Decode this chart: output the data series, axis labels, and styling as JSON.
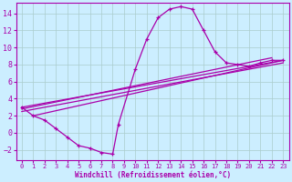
{
  "xlabel": "Windchill (Refroidissement éolien,°C)",
  "bg_color": "#cceeff",
  "line_color": "#aa00aa",
  "grid_color": "#aacccc",
  "xlim": [
    -0.5,
    23.5
  ],
  "ylim": [
    -3.2,
    15.2
  ],
  "xticks": [
    0,
    1,
    2,
    3,
    4,
    5,
    6,
    7,
    8,
    9,
    10,
    11,
    12,
    13,
    14,
    15,
    16,
    17,
    18,
    19,
    20,
    21,
    22,
    23
  ],
  "yticks": [
    -2,
    0,
    2,
    4,
    6,
    8,
    10,
    12,
    14
  ],
  "curve1": [
    [
      0,
      3.0
    ],
    [
      1,
      2.0
    ],
    [
      2,
      1.5
    ],
    [
      3,
      0.5
    ],
    [
      4,
      -0.5
    ],
    [
      5,
      -1.5
    ],
    [
      6,
      -1.8
    ],
    [
      7,
      -2.3
    ],
    [
      8,
      -2.5
    ],
    [
      8.5,
      1.0
    ],
    [
      10,
      7.5
    ],
    [
      11,
      11.0
    ],
    [
      12,
      13.5
    ],
    [
      13,
      14.5
    ],
    [
      14,
      14.8
    ],
    [
      15,
      14.5
    ],
    [
      16,
      12.0
    ],
    [
      17,
      9.5
    ],
    [
      18,
      8.2
    ],
    [
      19,
      8.0
    ],
    [
      20,
      7.8
    ],
    [
      21,
      8.2
    ],
    [
      22,
      8.5
    ],
    [
      23,
      8.5
    ]
  ],
  "line_a": [
    [
      0,
      23
    ],
    [
      3.0,
      8.5
    ]
  ],
  "line_b": [
    [
      0,
      23
    ],
    [
      2.5,
      8.2
    ]
  ],
  "line_c": [
    [
      1,
      23
    ],
    [
      2.0,
      8.5
    ]
  ],
  "line_d": [
    [
      0,
      22
    ],
    [
      2.8,
      8.8
    ]
  ]
}
